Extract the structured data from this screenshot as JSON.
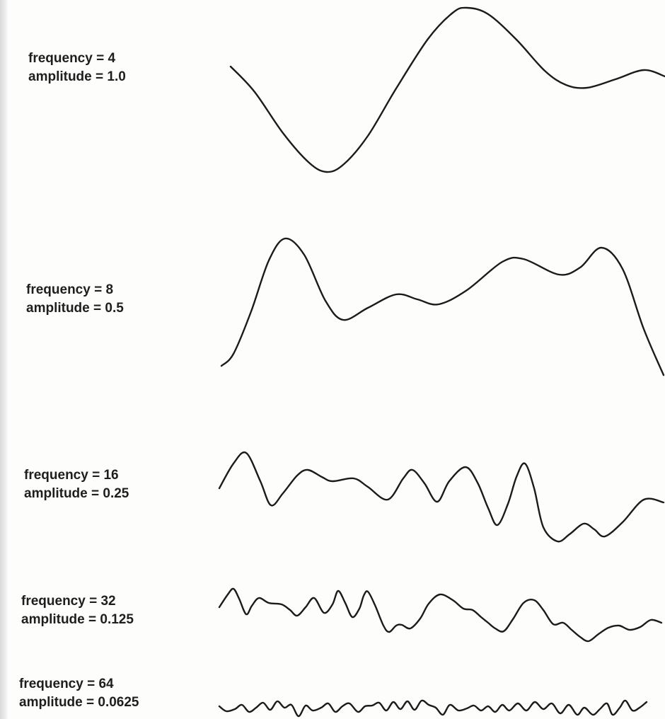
{
  "octaves": [
    {
      "frequency_label": "frequency = 4",
      "amplitude_label": "amplitude = 1.0",
      "frequency": 4,
      "amplitude": 1.0
    },
    {
      "frequency_label": "frequency = 8",
      "amplitude_label": "amplitude = 0.5",
      "frequency": 8,
      "amplitude": 0.5
    },
    {
      "frequency_label": "frequency = 16",
      "amplitude_label": "amplitude = 0.25",
      "frequency": 16,
      "amplitude": 0.25
    },
    {
      "frequency_label": "frequency = 32",
      "amplitude_label": "amplitude = 0.125",
      "frequency": 32,
      "amplitude": 0.125
    },
    {
      "frequency_label": "frequency = 64",
      "amplitude_label": "amplitude = 0.0625",
      "frequency": 64,
      "amplitude": 0.0625
    }
  ]
}
